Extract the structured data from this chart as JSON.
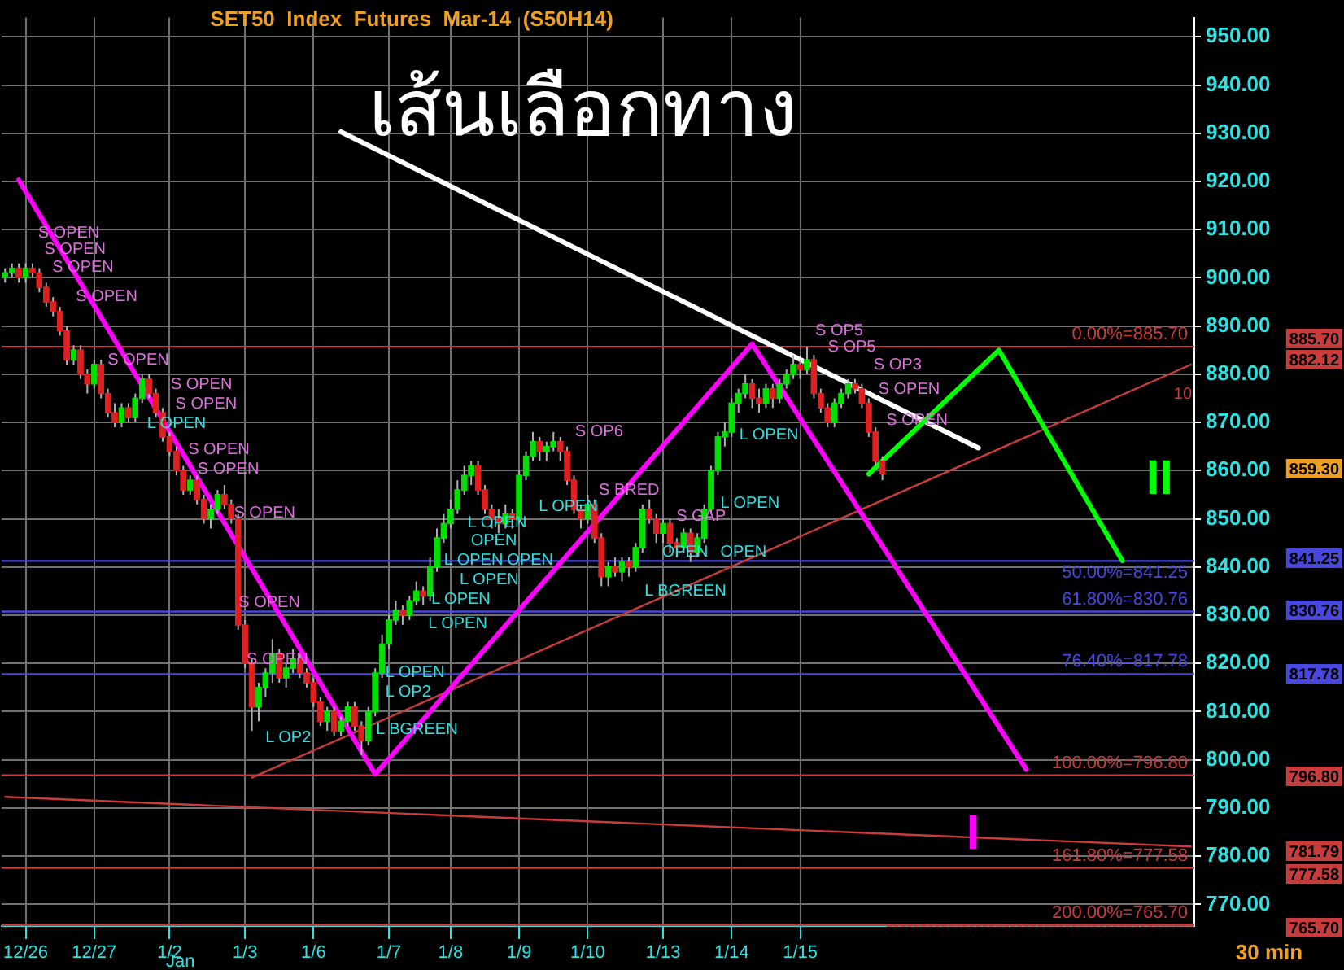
{
  "chart_data": {
    "type": "candlestick",
    "title": "SET50  Index  Futures  Mar-14  (S50H14)",
    "categories": [
      null,
      null,
      null,
      "12/26",
      null,
      null,
      null,
      null,
      null,
      null,
      null,
      null,
      null,
      "12/27",
      null,
      null,
      null,
      null,
      null,
      null,
      null,
      null,
      null,
      null,
      "1/2",
      null,
      null,
      null,
      null,
      null,
      null,
      null,
      null,
      null,
      null,
      "1/3",
      null,
      null,
      null,
      null,
      null,
      null,
      null,
      null,
      null,
      "1/6",
      null,
      null,
      null,
      null,
      null,
      null,
      null,
      null,
      null,
      null,
      "1/7",
      null,
      null,
      null,
      null,
      null,
      null,
      null,
      null,
      "1/8",
      null,
      null,
      null,
      null,
      null,
      null,
      null,
      null,
      null,
      "1/9",
      null,
      null,
      null,
      null,
      null,
      null,
      null,
      null,
      null,
      "1/10",
      null,
      null,
      null,
      null,
      null,
      null,
      null,
      null,
      null,
      null,
      "1/13",
      null,
      null,
      null,
      null,
      null,
      null,
      null,
      null,
      null,
      "1/14",
      null,
      null,
      null,
      null,
      null,
      null,
      null,
      null,
      null,
      "1/15",
      null,
      null,
      null,
      null,
      null,
      null,
      null,
      null,
      null,
      null,
      null,
      null,
      null,
      null,
      null,
      null,
      null,
      null,
      null,
      null,
      null,
      null,
      null,
      null,
      null,
      null,
      null,
      null,
      null,
      null,
      null,
      null,
      null,
      null,
      null,
      null,
      null,
      null,
      null,
      null,
      null,
      null,
      null,
      null,
      null,
      null,
      null,
      null,
      null,
      null,
      null,
      null,
      null,
      null,
      null,
      null,
      null
    ],
    "ohlc": [
      [
        900,
        902,
        899,
        901
      ],
      [
        901,
        903,
        900,
        902
      ],
      [
        902,
        903,
        899,
        900
      ],
      [
        900,
        903,
        899,
        902
      ],
      [
        902,
        903,
        900,
        901
      ],
      [
        901,
        902,
        897,
        898
      ],
      [
        898,
        899,
        894,
        895
      ],
      [
        895,
        896,
        892,
        893
      ],
      [
        893,
        894,
        888,
        889
      ],
      [
        889,
        890,
        882,
        883
      ],
      [
        883,
        886,
        882,
        885
      ],
      [
        885,
        886,
        879,
        880
      ],
      [
        880,
        881,
        876,
        878
      ],
      [
        878,
        883,
        877,
        882
      ],
      [
        882,
        883,
        875,
        876
      ],
      [
        876,
        877,
        871,
        872
      ],
      [
        872,
        874,
        869,
        870
      ],
      [
        870,
        874,
        869,
        873
      ],
      [
        873,
        874,
        870,
        871
      ],
      [
        871,
        876,
        870,
        875
      ],
      [
        875,
        880,
        874,
        879
      ],
      [
        879,
        880,
        875,
        876
      ],
      [
        876,
        877,
        871,
        872
      ],
      [
        872,
        873,
        866,
        867
      ],
      [
        867,
        868,
        863,
        864
      ],
      [
        864,
        865,
        859,
        860
      ],
      [
        860,
        861,
        855,
        856
      ],
      [
        856,
        859,
        855,
        858
      ],
      [
        858,
        859,
        853,
        854
      ],
      [
        854,
        855,
        849,
        850
      ],
      [
        850,
        853,
        848,
        852
      ],
      [
        852,
        856,
        851,
        855
      ],
      [
        855,
        857,
        852,
        853
      ],
      [
        853,
        854,
        849,
        850
      ],
      [
        850,
        851,
        827,
        828
      ],
      [
        828,
        829,
        819,
        820
      ],
      [
        820,
        821,
        806,
        811
      ],
      [
        811,
        816,
        808,
        815
      ],
      [
        815,
        819,
        813,
        818
      ],
      [
        818,
        825,
        816,
        822
      ],
      [
        822,
        823,
        816,
        817
      ],
      [
        817,
        820,
        815,
        819
      ],
      [
        819,
        823,
        818,
        821
      ],
      [
        821,
        822,
        817,
        818
      ],
      [
        818,
        819,
        815,
        816
      ],
      [
        816,
        817,
        811,
        812
      ],
      [
        812,
        813,
        807,
        808
      ],
      [
        808,
        811,
        806,
        810
      ],
      [
        810,
        811,
        805,
        806
      ],
      [
        806,
        809,
        805,
        808
      ],
      [
        808,
        812,
        807,
        811
      ],
      [
        811,
        812,
        806,
        807
      ],
      [
        807,
        808,
        801,
        804
      ],
      [
        804,
        811,
        803,
        810
      ],
      [
        810,
        819,
        809,
        818
      ],
      [
        818,
        826,
        817,
        824
      ],
      [
        824,
        830,
        823,
        829
      ],
      [
        829,
        833,
        828,
        831
      ],
      [
        831,
        832,
        828,
        830
      ],
      [
        830,
        834,
        829,
        833
      ],
      [
        833,
        837,
        832,
        835
      ],
      [
        835,
        836,
        832,
        834
      ],
      [
        834,
        842,
        833,
        840
      ],
      [
        840,
        848,
        839,
        846
      ],
      [
        846,
        851,
        845,
        849
      ],
      [
        849,
        854,
        848,
        852
      ],
      [
        852,
        858,
        851,
        856
      ],
      [
        856,
        861,
        855,
        859
      ],
      [
        859,
        862,
        857,
        861
      ],
      [
        861,
        862,
        855,
        856
      ],
      [
        856,
        857,
        851,
        852
      ],
      [
        852,
        853,
        848,
        850
      ],
      [
        850,
        852,
        847,
        849
      ],
      [
        849,
        853,
        848,
        851
      ],
      [
        851,
        852,
        848,
        850
      ],
      [
        850,
        860,
        849,
        859
      ],
      [
        859,
        864,
        858,
        863
      ],
      [
        863,
        868,
        862,
        866
      ],
      [
        866,
        867,
        862,
        864
      ],
      [
        864,
        866,
        862,
        865
      ],
      [
        865,
        868,
        864,
        866
      ],
      [
        866,
        867,
        862,
        864
      ],
      [
        864,
        865,
        857,
        858
      ],
      [
        858,
        859,
        851,
        852
      ],
      [
        852,
        853,
        848,
        850
      ],
      [
        850,
        855,
        849,
        853
      ],
      [
        853,
        854,
        845,
        846
      ],
      [
        846,
        847,
        836,
        838
      ],
      [
        838,
        841,
        836,
        840
      ],
      [
        840,
        842,
        838,
        839
      ],
      [
        839,
        842,
        837,
        841
      ],
      [
        841,
        842,
        838,
        840
      ],
      [
        840,
        845,
        839,
        844
      ],
      [
        844,
        853,
        843,
        852
      ],
      [
        852,
        854,
        849,
        850
      ],
      [
        850,
        851,
        845,
        847
      ],
      [
        847,
        850,
        845,
        849
      ],
      [
        849,
        850,
        843,
        845
      ],
      [
        845,
        846,
        842,
        844
      ],
      [
        844,
        848,
        843,
        847
      ],
      [
        847,
        848,
        841,
        843
      ],
      [
        843,
        847,
        842,
        846
      ],
      [
        846,
        853,
        845,
        852
      ],
      [
        852,
        861,
        851,
        860
      ],
      [
        860,
        868,
        859,
        867
      ],
      [
        867,
        870,
        865,
        868
      ],
      [
        868,
        875,
        867,
        874
      ],
      [
        874,
        877,
        872,
        876
      ],
      [
        876,
        880,
        875,
        878
      ],
      [
        878,
        879,
        873,
        875
      ],
      [
        875,
        877,
        872,
        874
      ],
      [
        874,
        878,
        873,
        877
      ],
      [
        877,
        878,
        873,
        875
      ],
      [
        875,
        879,
        874,
        878
      ],
      [
        878,
        881,
        877,
        880
      ],
      [
        880,
        884,
        879,
        882
      ],
      [
        882,
        883,
        879,
        881
      ],
      [
        881,
        885.7,
        880,
        883
      ],
      [
        883,
        884,
        875,
        876
      ],
      [
        876,
        877,
        872,
        873
      ],
      [
        873,
        874,
        869,
        870
      ],
      [
        870,
        875,
        869,
        874
      ],
      [
        874,
        877,
        873,
        876
      ],
      [
        876,
        879,
        875,
        878
      ],
      [
        878,
        879,
        876,
        877
      ],
      [
        877,
        878,
        873,
        874
      ],
      [
        874,
        875,
        867,
        868
      ],
      [
        868,
        869,
        861,
        862
      ],
      [
        862,
        863,
        858,
        859.3
      ],
      null,
      null,
      null,
      null,
      null,
      null,
      null,
      null,
      null,
      null,
      null,
      null,
      null,
      null,
      null,
      null,
      null,
      null,
      null,
      null,
      null,
      null,
      null,
      null,
      null,
      null,
      null,
      null,
      null,
      null,
      null,
      null,
      null,
      null,
      null,
      null,
      null,
      null,
      null,
      null,
      null,
      null,
      null,
      null,
      null
    ],
    "series": [
      {
        "type": "line",
        "color": "#ff00ff",
        "values": [
          null,
          null,
          920.3,
          null,
          null,
          null,
          null,
          null,
          null,
          null,
          null,
          null,
          null,
          null,
          null,
          null,
          null,
          null,
          null,
          null,
          null,
          null,
          null,
          null,
          null,
          null,
          null,
          null,
          null,
          null,
          null,
          null,
          null,
          null,
          null,
          null,
          null,
          null,
          null,
          null,
          null,
          null,
          null,
          null,
          null,
          null,
          null,
          null,
          null,
          null,
          null,
          null,
          null,
          null,
          797,
          null,
          null,
          null,
          null,
          null,
          null,
          null,
          null,
          null,
          null,
          null,
          null,
          null,
          null,
          null,
          null,
          null,
          null,
          null,
          null,
          null,
          null,
          null,
          null,
          null,
          null,
          null,
          null,
          null,
          null,
          null,
          null,
          null,
          null,
          null,
          null,
          null,
          null,
          null,
          null,
          null,
          null,
          null,
          null,
          null,
          null,
          null,
          null,
          null,
          null,
          null,
          null,
          null,
          null,
          886.3,
          null,
          null,
          null,
          null,
          null,
          null,
          null,
          null,
          null,
          null,
          null,
          null,
          null,
          null,
          null,
          null,
          null,
          null,
          null,
          null,
          null,
          null,
          null,
          null,
          null,
          null,
          null,
          null,
          null,
          null,
          null,
          null,
          null,
          null,
          null,
          null,
          null,
          null,
          null,
          798,
          null,
          null,
          null,
          null,
          null,
          null,
          null,
          null,
          null,
          null,
          null,
          null,
          null,
          null,
          null,
          null,
          null,
          null,
          null,
          null,
          null,
          null,
          null,
          null
        ]
      },
      {
        "type": "line",
        "color": "#00ff00",
        "values": [
          null,
          null,
          null,
          null,
          null,
          null,
          null,
          null,
          null,
          null,
          null,
          null,
          null,
          null,
          null,
          null,
          null,
          null,
          null,
          null,
          null,
          null,
          null,
          null,
          null,
          null,
          null,
          null,
          null,
          null,
          null,
          null,
          null,
          null,
          null,
          null,
          null,
          null,
          null,
          null,
          null,
          null,
          null,
          null,
          null,
          null,
          null,
          null,
          null,
          null,
          null,
          null,
          null,
          null,
          null,
          null,
          null,
          null,
          null,
          null,
          null,
          null,
          null,
          null,
          null,
          null,
          null,
          null,
          null,
          null,
          null,
          null,
          null,
          null,
          null,
          null,
          null,
          null,
          null,
          null,
          null,
          null,
          null,
          null,
          null,
          null,
          null,
          null,
          null,
          null,
          null,
          null,
          null,
          null,
          null,
          null,
          null,
          null,
          null,
          null,
          null,
          null,
          null,
          null,
          null,
          null,
          null,
          null,
          null,
          null,
          null,
          null,
          null,
          null,
          null,
          null,
          null,
          null,
          null,
          null,
          null,
          null,
          null,
          null,
          null,
          null,
          859.3,
          null,
          null,
          null,
          null,
          null,
          null,
          null,
          null,
          null,
          null,
          null,
          null,
          null,
          null,
          null,
          null,
          null,
          null,
          885,
          null,
          null,
          null,
          null,
          null,
          null,
          null,
          null,
          null,
          null,
          null,
          null,
          null,
          null,
          null,
          null,
          null,
          841.3,
          null,
          null,
          null,
          null,
          null,
          null,
          null,
          null,
          null,
          null
        ]
      },
      {
        "type": "line",
        "color": "#ffffff",
        "values": [
          null,
          null,
          null,
          null,
          null,
          null,
          null,
          null,
          null,
          null,
          null,
          null,
          null,
          null,
          null,
          null,
          null,
          null,
          null,
          null,
          null,
          null,
          null,
          null,
          null,
          null,
          null,
          null,
          null,
          null,
          null,
          null,
          null,
          null,
          null,
          null,
          null,
          null,
          null,
          null,
          null,
          null,
          null,
          null,
          null,
          null,
          null,
          null,
          null,
          930.3,
          null,
          null,
          null,
          null,
          null,
          null,
          null,
          null,
          null,
          null,
          null,
          null,
          null,
          null,
          null,
          null,
          null,
          null,
          null,
          null,
          null,
          null,
          null,
          null,
          null,
          null,
          null,
          null,
          null,
          null,
          null,
          null,
          null,
          null,
          null,
          null,
          null,
          null,
          null,
          null,
          null,
          null,
          null,
          null,
          null,
          null,
          null,
          null,
          null,
          null,
          null,
          null,
          null,
          null,
          null,
          null,
          null,
          null,
          null,
          null,
          null,
          null,
          null,
          null,
          null,
          null,
          null,
          null,
          null,
          null,
          null,
          null,
          null,
          null,
          null,
          null,
          null,
          null,
          null,
          null,
          null,
          null,
          null,
          null,
          null,
          null,
          null,
          null,
          null,
          null,
          null,
          null,
          864.7,
          null,
          null,
          null,
          null,
          null,
          null,
          null,
          null,
          null,
          null,
          null,
          null,
          null,
          null,
          null,
          null,
          null,
          null,
          null,
          null,
          null,
          null,
          null,
          null,
          null,
          null,
          null,
          null,
          null,
          null,
          null
        ]
      },
      {
        "type": "line",
        "color": "#c83c3c",
        "values": [
          null,
          null,
          null,
          null,
          null,
          null,
          null,
          null,
          null,
          null,
          null,
          null,
          null,
          null,
          null,
          null,
          null,
          null,
          null,
          null,
          null,
          null,
          null,
          null,
          null,
          null,
          null,
          null,
          null,
          null,
          null,
          null,
          null,
          null,
          null,
          null,
          796.3,
          null,
          null,
          null,
          null,
          null,
          null,
          null,
          null,
          null,
          null,
          null,
          null,
          null,
          null,
          null,
          null,
          null,
          null,
          null,
          null,
          null,
          null,
          null,
          null,
          null,
          null,
          null,
          null,
          null,
          null,
          null,
          null,
          null,
          null,
          null,
          null,
          null,
          null,
          null,
          null,
          null,
          null,
          null,
          null,
          null,
          null,
          null,
          null,
          null,
          null,
          null,
          null,
          null,
          null,
          null,
          null,
          null,
          null,
          null,
          null,
          null,
          null,
          null,
          null,
          null,
          null,
          null,
          null,
          null,
          null,
          null,
          null,
          null,
          null,
          null,
          null,
          null,
          null,
          null,
          null,
          null,
          null,
          null,
          null,
          null,
          null,
          null,
          null,
          null,
          null,
          null,
          null,
          null,
          null,
          null,
          null,
          null,
          null,
          null,
          null,
          null,
          null,
          null,
          null,
          null,
          null,
          null,
          null,
          null,
          null,
          null,
          null,
          null,
          null,
          null,
          null,
          null,
          null,
          null,
          null,
          null,
          null,
          null,
          null,
          null,
          null,
          null,
          null,
          null,
          null,
          null,
          null,
          null,
          null,
          null,
          null,
          882
        ]
      },
      {
        "type": "line",
        "color": "#c83c3c",
        "values": [
          792.3,
          null,
          null,
          null,
          null,
          null,
          null,
          null,
          null,
          null,
          null,
          null,
          null,
          null,
          null,
          null,
          null,
          null,
          null,
          null,
          null,
          null,
          null,
          null,
          null,
          null,
          null,
          null,
          null,
          null,
          null,
          null,
          null,
          null,
          null,
          null,
          null,
          null,
          null,
          null,
          null,
          null,
          null,
          null,
          null,
          null,
          null,
          null,
          null,
          null,
          null,
          null,
          null,
          null,
          null,
          null,
          null,
          null,
          null,
          null,
          null,
          null,
          null,
          null,
          null,
          null,
          null,
          null,
          null,
          null,
          null,
          null,
          null,
          null,
          null,
          null,
          null,
          null,
          null,
          null,
          null,
          null,
          null,
          null,
          null,
          null,
          null,
          null,
          null,
          null,
          null,
          null,
          null,
          null,
          null,
          null,
          null,
          null,
          null,
          null,
          null,
          null,
          null,
          null,
          null,
          null,
          null,
          null,
          null,
          null,
          null,
          null,
          null,
          null,
          null,
          null,
          null,
          null,
          null,
          null,
          null,
          null,
          null,
          null,
          null,
          null,
          null,
          null,
          null,
          null,
          null,
          null,
          null,
          null,
          null,
          null,
          null,
          null,
          null,
          null,
          null,
          null,
          null,
          null,
          null,
          null,
          null,
          null,
          null,
          null,
          null,
          null,
          null,
          null,
          null,
          null,
          null,
          null,
          null,
          null,
          null,
          null,
          null,
          null,
          null,
          null,
          null,
          null,
          null,
          null,
          null,
          null,
          null,
          782
        ]
      }
    ],
    "ylim": [
      765.5,
      954
    ],
    "yticks": [
      {
        "value": 770,
        "label": "770.00"
      },
      {
        "value": 780,
        "label": "780.00"
      },
      {
        "value": 790,
        "label": "790.00"
      },
      {
        "value": 800,
        "label": "800.00"
      },
      {
        "value": 810,
        "label": "810.00"
      },
      {
        "value": 820,
        "label": "820.00"
      },
      {
        "value": 830,
        "label": "830.00"
      },
      {
        "value": 840,
        "label": "840.00"
      },
      {
        "value": 850,
        "label": "850.00"
      },
      {
        "value": 860,
        "label": "860.00"
      },
      {
        "value": 870,
        "label": "870.00"
      },
      {
        "value": 880,
        "label": "880.00"
      },
      {
        "value": 890,
        "label": "890.00"
      },
      {
        "value": 900,
        "label": "900.00"
      },
      {
        "value": 910,
        "label": "910.00"
      },
      {
        "value": 920,
        "label": "920.00"
      },
      {
        "value": 930,
        "label": "930.00"
      },
      {
        "value": 940,
        "label": "940.00"
      },
      {
        "value": 950,
        "label": "950.00"
      }
    ],
    "grid": true,
    "legend": false,
    "marker": "none",
    "line_style": "solid",
    "ref_lines": [
      {
        "axis": "y",
        "value": 885.7,
        "label": "0.00%=885.70",
        "color": "#c83c3c"
      },
      {
        "axis": "y",
        "value": 841.25,
        "label": "50.00%=841.25",
        "color": "#4848e0"
      },
      {
        "axis": "y",
        "value": 830.76,
        "label": "61.80%=830.76",
        "color": "#4848e0"
      },
      {
        "axis": "y",
        "value": 817.78,
        "label": "76.40%=817.78",
        "color": "#4848e0"
      },
      {
        "axis": "y",
        "value": 796.8,
        "label": "100.00%=796.80",
        "color": "#c83c3c"
      },
      {
        "axis": "y",
        "value": 777.58,
        "label": "161.80%=777.58",
        "color": "#c83c3c"
      },
      {
        "axis": "y",
        "value": 765.7,
        "label": "200.00%=765.70",
        "color": "#c83c3c"
      }
    ],
    "annotations": [
      "เส้นเลือกทาง",
      "Jan",
      "30 min",
      "885.70",
      "882.12",
      "859.30",
      "841.25",
      "830.76",
      "817.78",
      "796.80",
      "781.79",
      "777.58",
      "765.70",
      "10",
      "I",
      "II",
      "S OPEN",
      "S OPEN",
      "S OPEN",
      "S OPEN",
      "S OPEN",
      "S OPEN",
      "S OPEN",
      "L OPEN",
      "S OPEN",
      "S OPEN",
      "S OPEN",
      "S OPEN",
      "S OPEN",
      "L OP2",
      "L BGREEN",
      "L OP2",
      "L OPEN",
      "L OPEN",
      "L OPEN",
      "L OPEN",
      "L OPEN",
      "OPEN",
      "OPEN",
      "L OPEN",
      "L OPEN",
      "S OP6",
      "S BRED",
      "S GAP",
      "L BGREEN",
      "OPEN",
      "OPEN",
      "L OPEN",
      "L OPEN",
      "S OP5",
      "S OP5",
      "S OP3",
      "S OPEN",
      "S OPEN"
    ]
  }
}
